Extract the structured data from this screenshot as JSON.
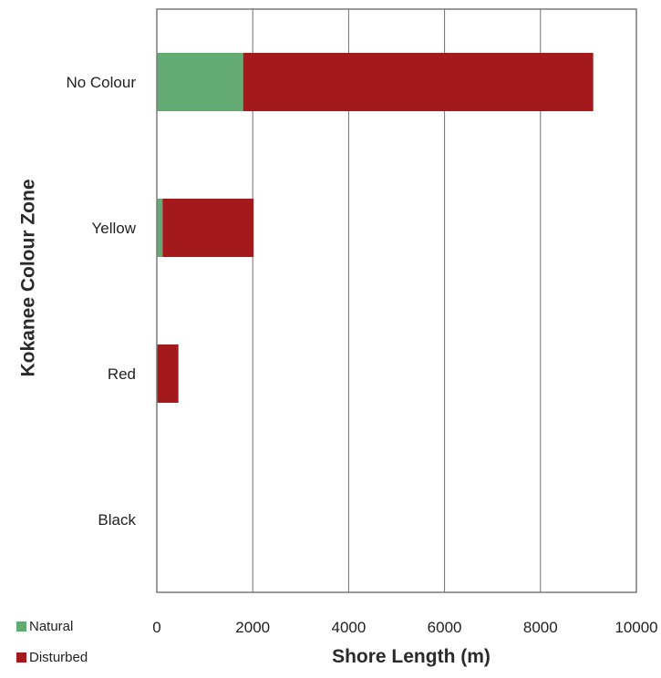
{
  "chart_data": {
    "type": "bar",
    "orientation": "horizontal",
    "stacked": true,
    "categories": [
      "No Colour",
      "Yellow",
      "Red",
      "Black"
    ],
    "series": [
      {
        "name": "Natural",
        "color": "#63ab73",
        "values": [
          1800,
          120,
          0,
          0
        ]
      },
      {
        "name": "Disturbed",
        "color": "#a3191c",
        "values": [
          7300,
          1900,
          450,
          0
        ]
      }
    ],
    "xlabel": "Shore Length (m)",
    "ylabel": "Kokanee Colour Zone",
    "xlim": [
      0,
      10000
    ],
    "xticks": [
      0,
      2000,
      4000,
      6000,
      8000,
      10000
    ],
    "grid": "vertical",
    "legend_position": "bottom-left"
  }
}
